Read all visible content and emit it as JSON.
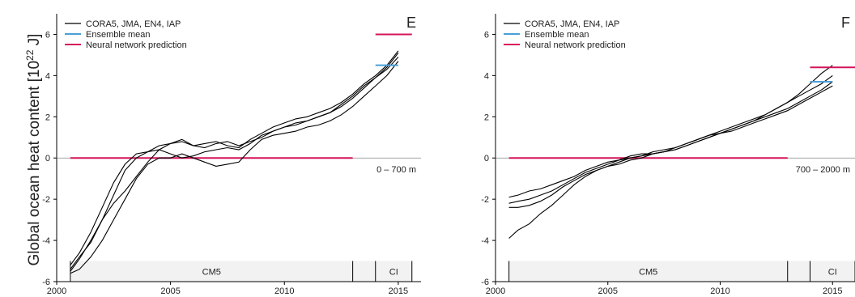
{
  "figure": {
    "ylabel_text": "Global ocean heat content [10",
    "ylabel_exp": "22",
    "ylabel_unit": " J]"
  },
  "colors": {
    "observation": "#000000",
    "ensemble_mean": "#4a9fd8",
    "neural_network": "#d4145a",
    "period_band": "#f2f2f2"
  },
  "chart_data": [
    {
      "panel_label": "E",
      "type": "line",
      "depth_label": "0 – 700 m",
      "xlim": [
        2000,
        2016
      ],
      "ylim": [
        -6,
        7
      ],
      "x_ticks": [
        2000,
        2005,
        2010,
        2015
      ],
      "y_ticks": [
        -6,
        -4,
        -2,
        0,
        2,
        4,
        6
      ],
      "legend": [
        "CORA5, JMA, EN4, IAP",
        "Ensemble mean",
        "Neural network prediction"
      ],
      "legend_position": "top-left",
      "series": [
        {
          "name": "CORA5, JMA, EN4, IAP",
          "x": [
            2000.6,
            2001.0,
            2001.5,
            2002.0,
            2002.5,
            2003.0,
            2003.5,
            2004.0,
            2004.5,
            2005.0,
            2005.5,
            2006.0,
            2006.5,
            2007.0,
            2007.5,
            2008.0,
            2008.5,
            2009.0,
            2009.5,
            2010.0,
            2010.5,
            2011.0,
            2011.5,
            2012.0,
            2012.5,
            2013.0,
            2013.5,
            2014.0,
            2014.5,
            2015.0
          ],
          "y": [
            -5.2,
            -4.6,
            -3.6,
            -2.4,
            -1.2,
            -0.3,
            0.2,
            0.3,
            0.4,
            0.2,
            0.0,
            0.1,
            0.3,
            0.4,
            0.5,
            0.4,
            0.7,
            1.1,
            1.3,
            1.5,
            1.6,
            1.8,
            2.0,
            2.2,
            2.5,
            2.9,
            3.4,
            3.9,
            4.4,
            5.1
          ]
        },
        {
          "name": "CORA5, JMA, EN4, IAP",
          "x": [
            2000.6,
            2001.0,
            2001.5,
            2002.0,
            2002.5,
            2003.0,
            2003.5,
            2004.0,
            2004.5,
            2005.0,
            2005.5,
            2006.0,
            2006.5,
            2007.0,
            2007.5,
            2008.0,
            2008.5,
            2009.0,
            2009.5,
            2010.0,
            2010.5,
            2011.0,
            2011.5,
            2012.0,
            2012.5,
            2013.0,
            2013.5,
            2014.0,
            2014.5,
            2015.0
          ],
          "y": [
            -5.4,
            -4.8,
            -4.1,
            -3.0,
            -1.8,
            -0.6,
            0.0,
            0.3,
            0.6,
            0.7,
            0.8,
            0.6,
            0.7,
            0.8,
            0.6,
            0.5,
            0.9,
            1.2,
            1.5,
            1.7,
            1.9,
            2.0,
            2.2,
            2.4,
            2.7,
            3.1,
            3.6,
            4.0,
            4.5,
            5.2
          ]
        },
        {
          "name": "CORA5, JMA, EN4, IAP",
          "x": [
            2000.6,
            2001.0,
            2001.5,
            2002.0,
            2002.5,
            2003.0,
            2003.5,
            2004.0,
            2004.5,
            2005.0,
            2005.5,
            2006.0,
            2006.5,
            2007.0,
            2007.5,
            2008.0,
            2008.5,
            2009.0,
            2009.5,
            2010.0,
            2010.5,
            2011.0,
            2011.5,
            2012.0,
            2012.5,
            2013.0,
            2013.5,
            2014.0,
            2014.5,
            2015.0
          ],
          "y": [
            -5.6,
            -5.4,
            -4.8,
            -4.0,
            -3.0,
            -2.0,
            -1.0,
            -0.3,
            0.0,
            0.0,
            0.2,
            0.0,
            -0.2,
            -0.4,
            -0.3,
            -0.2,
            0.4,
            0.9,
            1.1,
            1.2,
            1.3,
            1.5,
            1.6,
            1.8,
            2.1,
            2.5,
            3.0,
            3.5,
            4.0,
            4.7
          ]
        },
        {
          "name": "CORA5, JMA, EN4, IAP",
          "x": [
            2000.6,
            2001.0,
            2001.5,
            2002.0,
            2002.5,
            2003.0,
            2003.5,
            2004.0,
            2004.5,
            2005.0,
            2005.5,
            2006.0,
            2006.5,
            2007.0,
            2007.5,
            2008.0,
            2008.5,
            2009.0,
            2009.5,
            2010.0,
            2010.5,
            2011.0,
            2011.5,
            2012.0,
            2012.5,
            2013.0,
            2013.5,
            2014.0,
            2014.5,
            2015.0
          ],
          "y": [
            -5.5,
            -4.9,
            -4.0,
            -3.0,
            -2.2,
            -1.6,
            -0.9,
            -0.2,
            0.4,
            0.7,
            0.9,
            0.6,
            0.5,
            0.7,
            0.8,
            0.6,
            0.8,
            1.0,
            1.3,
            1.5,
            1.7,
            1.8,
            2.0,
            2.2,
            2.6,
            3.0,
            3.5,
            3.9,
            4.3,
            4.9
          ]
        }
      ],
      "ensemble_mean": {
        "x": [
          2014.0,
          2015.0
        ],
        "y": 4.5
      },
      "nn_baseline": {
        "x": [
          2000.6,
          2013.0
        ],
        "y": 0
      },
      "nn_prediction": {
        "x": [
          2014.0,
          2015.6
        ],
        "y": 6.0
      },
      "periods": [
        {
          "label": "CM5",
          "x": [
            2000.6,
            2013.0
          ]
        },
        {
          "label": "CI",
          "x": [
            2014.0,
            2015.6
          ]
        }
      ]
    },
    {
      "panel_label": "F",
      "type": "line",
      "depth_label": "700 – 2000 m",
      "xlim": [
        2000,
        2016
      ],
      "ylim": [
        -6,
        7
      ],
      "x_ticks": [
        2000,
        2005,
        2010,
        2015
      ],
      "y_ticks": [
        -6,
        -4,
        -2,
        0,
        2,
        4,
        6
      ],
      "legend": [
        "CORA5, JMA, EN4, IAP",
        "Ensemble mean",
        "Neural network prediction"
      ],
      "legend_position": "top-left",
      "series": [
        {
          "name": "CORA5, JMA, EN4, IAP",
          "x": [
            2000.6,
            2001.0,
            2001.5,
            2002.0,
            2002.5,
            2003.0,
            2003.5,
            2004.0,
            2004.5,
            2005.0,
            2005.5,
            2006.0,
            2006.5,
            2007.0,
            2007.5,
            2008.0,
            2008.5,
            2009.0,
            2009.5,
            2010.0,
            2010.5,
            2011.0,
            2011.5,
            2012.0,
            2012.5,
            2013.0,
            2013.5,
            2014.0,
            2014.5,
            2015.0
          ],
          "y": [
            -1.9,
            -1.8,
            -1.6,
            -1.5,
            -1.3,
            -1.1,
            -0.9,
            -0.6,
            -0.4,
            -0.2,
            -0.1,
            0.0,
            0.1,
            0.2,
            0.3,
            0.4,
            0.6,
            0.8,
            1.0,
            1.2,
            1.4,
            1.6,
            1.8,
            2.1,
            2.4,
            2.7,
            3.1,
            3.6,
            4.1,
            4.5
          ]
        },
        {
          "name": "CORA5, JMA, EN4, IAP",
          "x": [
            2000.6,
            2001.0,
            2001.5,
            2002.0,
            2002.5,
            2003.0,
            2003.5,
            2004.0,
            2004.5,
            2005.0,
            2005.5,
            2006.0,
            2006.5,
            2007.0,
            2007.5,
            2008.0,
            2008.5,
            2009.0,
            2009.5,
            2010.0,
            2010.5,
            2011.0,
            2011.5,
            2012.0,
            2012.5,
            2013.0,
            2013.5,
            2014.0,
            2014.5,
            2015.0
          ],
          "y": [
            -2.2,
            -2.1,
            -2.0,
            -1.8,
            -1.6,
            -1.3,
            -1.0,
            -0.7,
            -0.5,
            -0.3,
            -0.1,
            0.1,
            0.2,
            0.2,
            0.3,
            0.5,
            0.7,
            0.9,
            1.1,
            1.3,
            1.5,
            1.7,
            1.9,
            2.1,
            2.4,
            2.7,
            3.0,
            3.3,
            3.6,
            4.0
          ]
        },
        {
          "name": "CORA5, JMA, EN4, IAP",
          "x": [
            2000.6,
            2001.0,
            2001.5,
            2002.0,
            2002.5,
            2003.0,
            2003.5,
            2004.0,
            2004.5,
            2005.0,
            2005.5,
            2006.0,
            2006.5,
            2007.0,
            2007.5,
            2008.0,
            2008.5,
            2009.0,
            2009.5,
            2010.0,
            2010.5,
            2011.0,
            2011.5,
            2012.0,
            2012.5,
            2013.0,
            2013.5,
            2014.0,
            2014.5,
            2015.0
          ],
          "y": [
            -2.4,
            -2.4,
            -2.3,
            -2.1,
            -1.8,
            -1.4,
            -1.1,
            -0.8,
            -0.6,
            -0.4,
            -0.2,
            0.0,
            0.1,
            0.3,
            0.4,
            0.5,
            0.7,
            0.9,
            1.1,
            1.2,
            1.4,
            1.6,
            1.8,
            2.0,
            2.2,
            2.4,
            2.7,
            3.0,
            3.3,
            3.7
          ]
        },
        {
          "name": "CORA5, JMA, EN4, IAP",
          "x": [
            2000.6,
            2001.0,
            2001.5,
            2002.0,
            2002.5,
            2003.0,
            2003.5,
            2004.0,
            2004.5,
            2005.0,
            2005.5,
            2006.0,
            2006.5,
            2007.0,
            2007.5,
            2008.0,
            2008.5,
            2009.0,
            2009.5,
            2010.0,
            2010.5,
            2011.0,
            2011.5,
            2012.0,
            2012.5,
            2013.0,
            2013.5,
            2014.0,
            2014.5,
            2015.0
          ],
          "y": [
            -3.9,
            -3.5,
            -3.2,
            -2.7,
            -2.3,
            -1.8,
            -1.3,
            -0.9,
            -0.6,
            -0.4,
            -0.3,
            -0.1,
            0.0,
            0.2,
            0.3,
            0.4,
            0.6,
            0.8,
            1.0,
            1.2,
            1.3,
            1.5,
            1.7,
            1.9,
            2.1,
            2.3,
            2.6,
            2.9,
            3.2,
            3.5
          ]
        }
      ],
      "ensemble_mean": {
        "x": [
          2014.0,
          2015.0
        ],
        "y": 3.7
      },
      "nn_baseline": {
        "x": [
          2000.6,
          2013.0
        ],
        "y": 0
      },
      "nn_prediction": {
        "x": [
          2014.0,
          2016.0
        ],
        "y": 4.4
      },
      "periods": [
        {
          "label": "CM5",
          "x": [
            2000.6,
            2013.0
          ]
        },
        {
          "label": "CI",
          "x": [
            2014.0,
            2016.0
          ]
        }
      ]
    }
  ]
}
